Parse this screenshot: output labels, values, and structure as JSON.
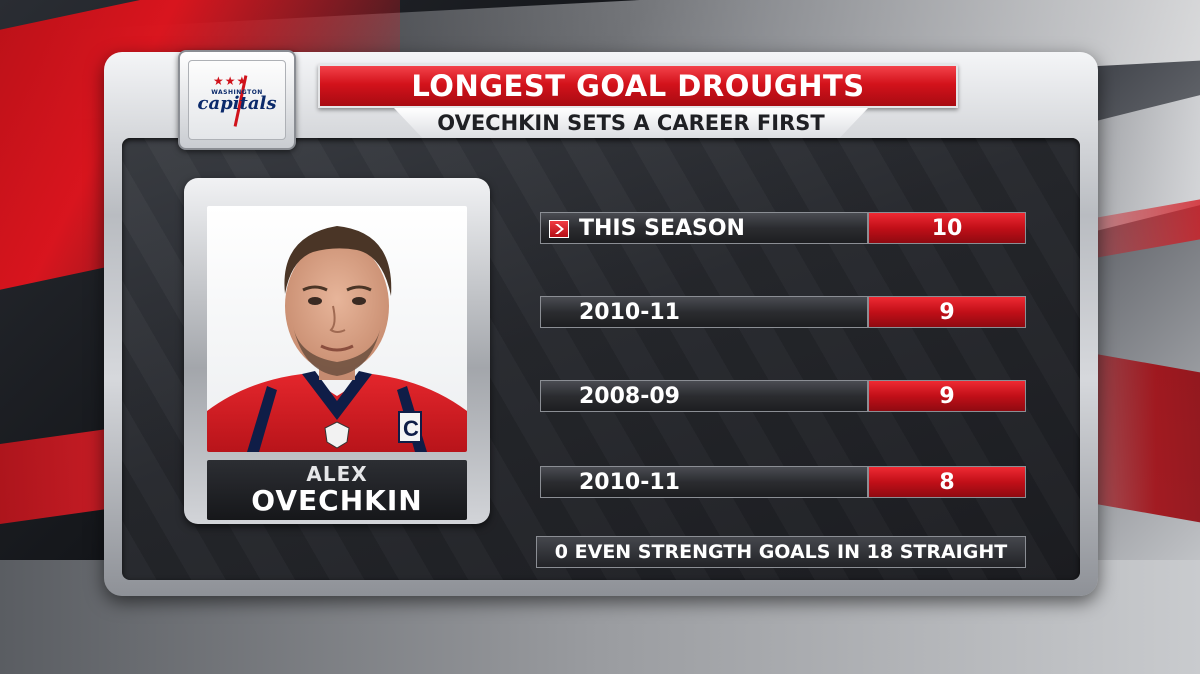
{
  "team": {
    "logo_city": "WASHINGTON",
    "logo_name": "capitals",
    "logo_icon": "capitals-logo"
  },
  "header": {
    "title": "LONGEST GOAL DROUGHTS",
    "subtitle": "OVECHKIN SETS A CAREER FIRST"
  },
  "player": {
    "first_name": "ALEX",
    "last_name": "OVECHKIN",
    "photo_icon": "player-headshot"
  },
  "rows": [
    {
      "label": "THIS SEASON",
      "value": "10",
      "highlighted": true
    },
    {
      "label": "2010-11",
      "value": "9",
      "highlighted": false
    },
    {
      "label": "2008-09",
      "value": "9",
      "highlighted": false
    },
    {
      "label": "2010-11",
      "value": "8",
      "highlighted": false
    }
  ],
  "footnote": "0 EVEN STRENGTH GOALS IN 18 STRAIGHT",
  "colors": {
    "accent_red": "#d3121b",
    "panel_dark": "#25272c",
    "frame_silver": "#c9ccd1",
    "team_navy": "#0b2a6b"
  }
}
